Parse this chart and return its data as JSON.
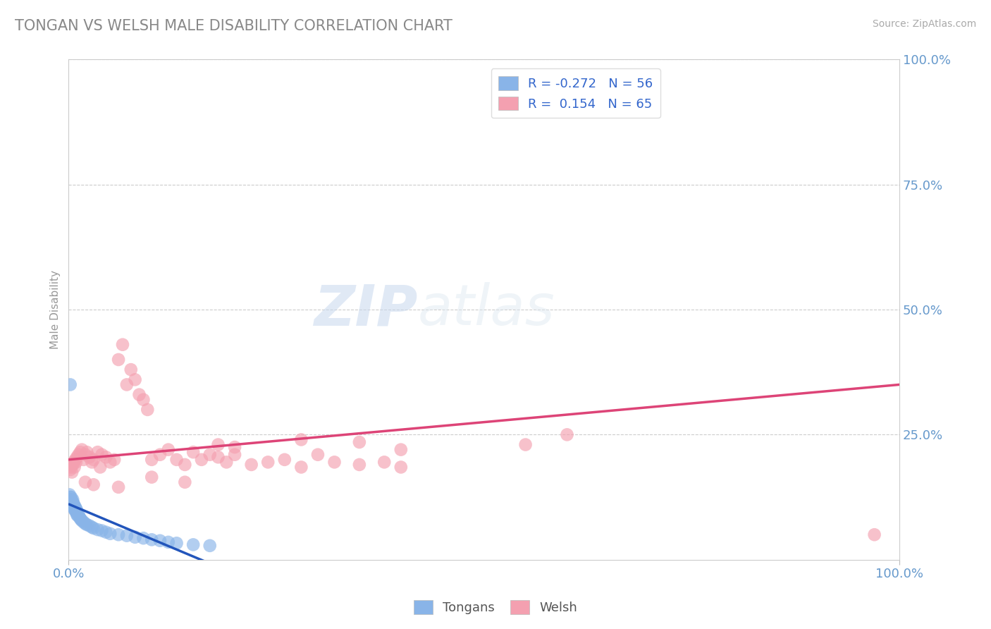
{
  "title": "TONGAN VS WELSH MALE DISABILITY CORRELATION CHART",
  "source": "Source: ZipAtlas.com",
  "ylabel": "Male Disability",
  "xlim": [
    0,
    1.0
  ],
  "ylim": [
    0,
    1.0
  ],
  "ytick_positions": [
    0.25,
    0.5,
    0.75,
    1.0
  ],
  "ytick_labels": [
    "25.0%",
    "50.0%",
    "75.0%",
    "100.0%"
  ],
  "color_tongan": "#89b4e8",
  "color_welsh": "#f4a0b0",
  "color_line_tongan": "#2255bb",
  "color_line_welsh": "#dd4477",
  "color_axis_labels": "#6699cc",
  "background_color": "#ffffff",
  "grid_color": "#cccccc",
  "watermark_zip": "ZIP",
  "watermark_atlas": "atlas",
  "tongan_x": [
    0.001,
    0.001,
    0.001,
    0.002,
    0.002,
    0.002,
    0.002,
    0.003,
    0.003,
    0.003,
    0.003,
    0.004,
    0.004,
    0.004,
    0.005,
    0.005,
    0.005,
    0.005,
    0.006,
    0.006,
    0.006,
    0.007,
    0.007,
    0.008,
    0.008,
    0.009,
    0.009,
    0.01,
    0.01,
    0.011,
    0.012,
    0.013,
    0.014,
    0.015,
    0.016,
    0.018,
    0.02,
    0.022,
    0.025,
    0.028,
    0.03,
    0.035,
    0.04,
    0.045,
    0.05,
    0.06,
    0.07,
    0.08,
    0.09,
    0.1,
    0.11,
    0.12,
    0.13,
    0.15,
    0.17,
    0.002
  ],
  "tongan_y": [
    0.115,
    0.12,
    0.13,
    0.11,
    0.115,
    0.12,
    0.125,
    0.11,
    0.115,
    0.12,
    0.125,
    0.108,
    0.112,
    0.118,
    0.105,
    0.11,
    0.115,
    0.12,
    0.105,
    0.108,
    0.112,
    0.1,
    0.108,
    0.098,
    0.105,
    0.095,
    0.102,
    0.09,
    0.098,
    0.088,
    0.09,
    0.085,
    0.082,
    0.08,
    0.078,
    0.075,
    0.072,
    0.07,
    0.068,
    0.065,
    0.063,
    0.06,
    0.058,
    0.055,
    0.052,
    0.05,
    0.048,
    0.045,
    0.043,
    0.04,
    0.038,
    0.035,
    0.033,
    0.03,
    0.028,
    0.35
  ],
  "welsh_x": [
    0.002,
    0.003,
    0.004,
    0.005,
    0.006,
    0.007,
    0.008,
    0.009,
    0.01,
    0.012,
    0.014,
    0.016,
    0.018,
    0.02,
    0.022,
    0.025,
    0.028,
    0.03,
    0.035,
    0.038,
    0.04,
    0.045,
    0.05,
    0.055,
    0.06,
    0.065,
    0.07,
    0.075,
    0.08,
    0.085,
    0.09,
    0.095,
    0.1,
    0.11,
    0.12,
    0.13,
    0.14,
    0.15,
    0.16,
    0.17,
    0.18,
    0.19,
    0.2,
    0.22,
    0.24,
    0.26,
    0.28,
    0.3,
    0.32,
    0.35,
    0.38,
    0.4,
    0.18,
    0.2,
    0.35,
    0.4,
    0.28,
    0.55,
    0.6,
    0.02,
    0.03,
    0.06,
    0.1,
    0.14,
    0.97
  ],
  "welsh_y": [
    0.18,
    0.185,
    0.175,
    0.19,
    0.195,
    0.185,
    0.2,
    0.195,
    0.205,
    0.21,
    0.215,
    0.22,
    0.2,
    0.21,
    0.215,
    0.205,
    0.195,
    0.2,
    0.215,
    0.185,
    0.21,
    0.205,
    0.195,
    0.2,
    0.4,
    0.43,
    0.35,
    0.38,
    0.36,
    0.33,
    0.32,
    0.3,
    0.2,
    0.21,
    0.22,
    0.2,
    0.19,
    0.215,
    0.2,
    0.21,
    0.205,
    0.195,
    0.21,
    0.19,
    0.195,
    0.2,
    0.185,
    0.21,
    0.195,
    0.19,
    0.195,
    0.185,
    0.23,
    0.225,
    0.235,
    0.22,
    0.24,
    0.23,
    0.25,
    0.155,
    0.15,
    0.145,
    0.165,
    0.155,
    0.05
  ]
}
